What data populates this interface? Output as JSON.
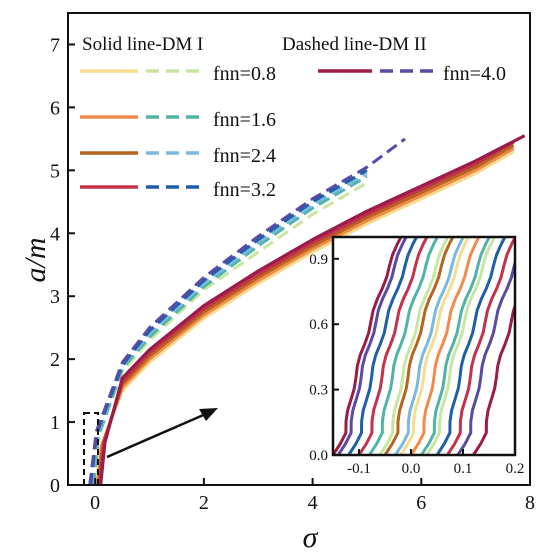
{
  "chart_data": {
    "type": "line",
    "xlabel": "σ",
    "ylabel": "a/m",
    "xlim": [
      -0.5,
      8
    ],
    "ylim": [
      0,
      7.5
    ],
    "xticks": [
      0,
      2,
      4,
      6,
      8
    ],
    "yticks": [
      0,
      1,
      2,
      3,
      4,
      5,
      6,
      7
    ],
    "legend": {
      "placement": "top-left",
      "solid_header": "Solid line-DM I",
      "dashed_header": "Dashed line-DM II",
      "labels": [
        "fnn=0.8",
        "fnn=1.6",
        "fnn=2.4",
        "fnn=3.2",
        "fnn=4.0"
      ]
    },
    "series": [
      {
        "name": "fnn=0.8",
        "model": "DM I",
        "style": "solid",
        "color": "#f5dc8f",
        "x": [
          0.02,
          0.1,
          0.5,
          1,
          2,
          3,
          4,
          5,
          6,
          7,
          7.7
        ],
        "y": [
          0,
          0.6,
          1.5,
          1.95,
          2.65,
          3.2,
          3.7,
          4.15,
          4.55,
          4.95,
          5.3
        ]
      },
      {
        "name": "fnn=1.6",
        "model": "DM I",
        "style": "solid",
        "color": "#f28a4a",
        "x": [
          0.04,
          0.12,
          0.5,
          1,
          2,
          3,
          4,
          5,
          6,
          7,
          7.7
        ],
        "y": [
          0,
          0.62,
          1.55,
          2.0,
          2.7,
          3.25,
          3.75,
          4.2,
          4.6,
          5.0,
          5.35
        ]
      },
      {
        "name": "fnn=2.4",
        "model": "DM I",
        "style": "solid",
        "color": "#b5651d",
        "x": [
          0.06,
          0.14,
          0.5,
          1,
          2,
          3,
          4,
          5,
          6,
          7,
          7.7
        ],
        "y": [
          0,
          0.64,
          1.6,
          2.05,
          2.75,
          3.3,
          3.8,
          4.25,
          4.65,
          5.05,
          5.4
        ]
      },
      {
        "name": "fnn=3.2",
        "model": "DM I",
        "style": "solid",
        "color": "#c4314b",
        "x": [
          0.08,
          0.16,
          0.5,
          1,
          2,
          3,
          4,
          5,
          6,
          7,
          7.7
        ],
        "y": [
          0,
          0.66,
          1.65,
          2.1,
          2.8,
          3.35,
          3.85,
          4.3,
          4.7,
          5.1,
          5.45
        ]
      },
      {
        "name": "fnn=0.8",
        "model": "DM II",
        "style": "dashed",
        "color": "#c8e6a0",
        "x": [
          -0.05,
          0.05,
          0.5,
          1,
          2,
          3,
          4,
          5
        ],
        "y": [
          0,
          0.75,
          1.8,
          2.3,
          3.1,
          3.7,
          4.3,
          4.8
        ]
      },
      {
        "name": "fnn=1.6",
        "model": "DM II",
        "style": "dashed",
        "color": "#4fb3a6",
        "x": [
          -0.03,
          0.06,
          0.5,
          1,
          2,
          3,
          4,
          5
        ],
        "y": [
          0,
          0.78,
          1.85,
          2.35,
          3.15,
          3.8,
          4.4,
          4.9
        ]
      },
      {
        "name": "fnn=2.4",
        "model": "DM II",
        "style": "dashed",
        "color": "#7ab8dd",
        "x": [
          -0.06,
          0.04,
          0.5,
          1,
          2,
          3,
          4,
          5
        ],
        "y": [
          0,
          0.8,
          1.88,
          2.4,
          3.2,
          3.85,
          4.45,
          4.95
        ]
      },
      {
        "name": "fnn=3.2",
        "model": "DM II",
        "style": "dashed",
        "color": "#1f5fa8",
        "x": [
          -0.08,
          0.03,
          0.5,
          1,
          2,
          3,
          4,
          5
        ],
        "y": [
          0,
          0.82,
          1.9,
          2.45,
          3.25,
          3.9,
          4.5,
          5.0
        ]
      },
      {
        "name": "fnn=4.0",
        "model": "DM I",
        "style": "solid",
        "color": "#9b1b4a",
        "x": [
          0.1,
          0.18,
          0.5,
          1,
          2,
          3,
          4,
          5,
          6,
          7,
          7.9
        ],
        "y": [
          0,
          0.68,
          1.7,
          2.15,
          2.85,
          3.4,
          3.9,
          4.35,
          4.75,
          5.15,
          5.55
        ]
      },
      {
        "name": "fnn=4.0",
        "model": "DM II",
        "style": "dashed",
        "color": "#5a4aa3",
        "x": [
          -0.1,
          0.02,
          0.5,
          1,
          2,
          3,
          4,
          5,
          5.7
        ],
        "y": [
          0,
          0.85,
          1.95,
          2.5,
          3.3,
          3.95,
          4.55,
          5.05,
          5.5
        ]
      }
    ],
    "inset": {
      "xlim": [
        -0.15,
        0.2
      ],
      "ylim": [
        0,
        1.0
      ],
      "xticks": [
        -0.1,
        0.0,
        0.1,
        0.2
      ],
      "xtick_labels": [
        "-0.1",
        "0.0",
        "0.1",
        "0.2"
      ],
      "yticks": [
        0.0,
        0.3,
        0.6,
        0.9
      ],
      "ytick_labels": [
        "0.0",
        "0.3",
        "0.6",
        "0.9"
      ],
      "curve_offsets": [
        {
          "x0": -0.13,
          "color": "#9b1b4a"
        },
        {
          "x0": -0.12,
          "color": "#5a4aa3"
        },
        {
          "x0": -0.1,
          "color": "#1f5fa8"
        },
        {
          "x0": -0.08,
          "color": "#c4314b"
        },
        {
          "x0": -0.06,
          "color": "#4fb3a6"
        },
        {
          "x0": -0.04,
          "color": "#c8e6a0"
        },
        {
          "x0": -0.03,
          "color": "#b5651d"
        },
        {
          "x0": -0.01,
          "color": "#7ab8dd"
        },
        {
          "x0": 0.0,
          "color": "#f5dc8f"
        },
        {
          "x0": 0.02,
          "color": "#f28a4a"
        },
        {
          "x0": 0.04,
          "color": "#4fb3a6"
        },
        {
          "x0": 0.05,
          "color": "#c8e6a0"
        },
        {
          "x0": 0.07,
          "color": "#1f5fa8"
        },
        {
          "x0": 0.09,
          "color": "#c4314b"
        },
        {
          "x0": 0.11,
          "color": "#5a4aa3"
        },
        {
          "x0": 0.14,
          "color": "#9b1b4a"
        }
      ]
    }
  }
}
